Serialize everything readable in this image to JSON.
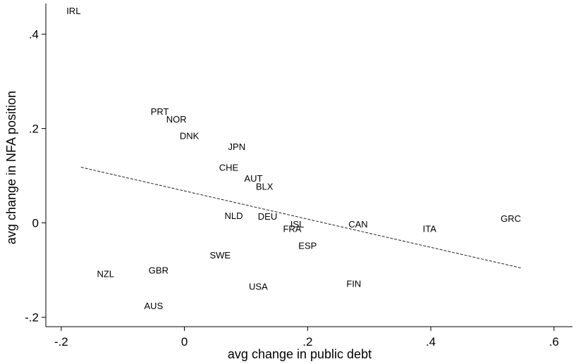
{
  "chart_data": {
    "type": "scatter",
    "title": "",
    "xlabel": "avg change in public debt",
    "ylabel": "avg change in NFA position",
    "xlim": [
      -0.225,
      0.63
    ],
    "ylim": [
      -0.22,
      0.465
    ],
    "xticks": [
      {
        "v": -0.2,
        "label": "-.2"
      },
      {
        "v": 0,
        "label": "0"
      },
      {
        "v": 0.2,
        "label": ".2"
      },
      {
        "v": 0.4,
        "label": ".4"
      },
      {
        "v": 0.6,
        "label": ".6"
      }
    ],
    "yticks": [
      {
        "v": -0.2,
        "label": "-.2"
      },
      {
        "v": 0,
        "label": "0"
      },
      {
        "v": 0.2,
        "label": ".2"
      },
      {
        "v": 0.4,
        "label": ".4"
      }
    ],
    "points": [
      {
        "label": "IRL",
        "x": -0.18,
        "y": 0.45
      },
      {
        "label": "PRT",
        "x": -0.04,
        "y": 0.237
      },
      {
        "label": "NOR",
        "x": -0.013,
        "y": 0.22
      },
      {
        "label": "DNK",
        "x": 0.008,
        "y": 0.185
      },
      {
        "label": "JPN",
        "x": 0.085,
        "y": 0.162
      },
      {
        "label": "CHE",
        "x": 0.072,
        "y": 0.118
      },
      {
        "label": "AUT",
        "x": 0.112,
        "y": 0.095
      },
      {
        "label": "BLX",
        "x": 0.13,
        "y": 0.078
      },
      {
        "label": "NLD",
        "x": 0.08,
        "y": 0.016
      },
      {
        "label": "DEU",
        "x": 0.135,
        "y": 0.014
      },
      {
        "label": "ISL",
        "x": 0.183,
        "y": -0.002
      },
      {
        "label": "FRA",
        "x": 0.175,
        "y": -0.012
      },
      {
        "label": "CAN",
        "x": 0.282,
        "y": -0.002
      },
      {
        "label": "ITA",
        "x": 0.398,
        "y": -0.012
      },
      {
        "label": "GRC",
        "x": 0.53,
        "y": 0.01
      },
      {
        "label": "ESP",
        "x": 0.2,
        "y": -0.048
      },
      {
        "label": "SWE",
        "x": 0.058,
        "y": -0.068
      },
      {
        "label": "NZL",
        "x": -0.128,
        "y": -0.107
      },
      {
        "label": "GBR",
        "x": -0.042,
        "y": -0.1
      },
      {
        "label": "USA",
        "x": 0.12,
        "y": -0.134
      },
      {
        "label": "FIN",
        "x": 0.275,
        "y": -0.128
      },
      {
        "label": "AUS",
        "x": -0.05,
        "y": -0.175
      }
    ],
    "fit_line": {
      "x": [
        -0.168,
        0.548
      ],
      "y": [
        0.118,
        -0.096
      ],
      "style": "dashed"
    },
    "grid": false,
    "legend": "none"
  }
}
